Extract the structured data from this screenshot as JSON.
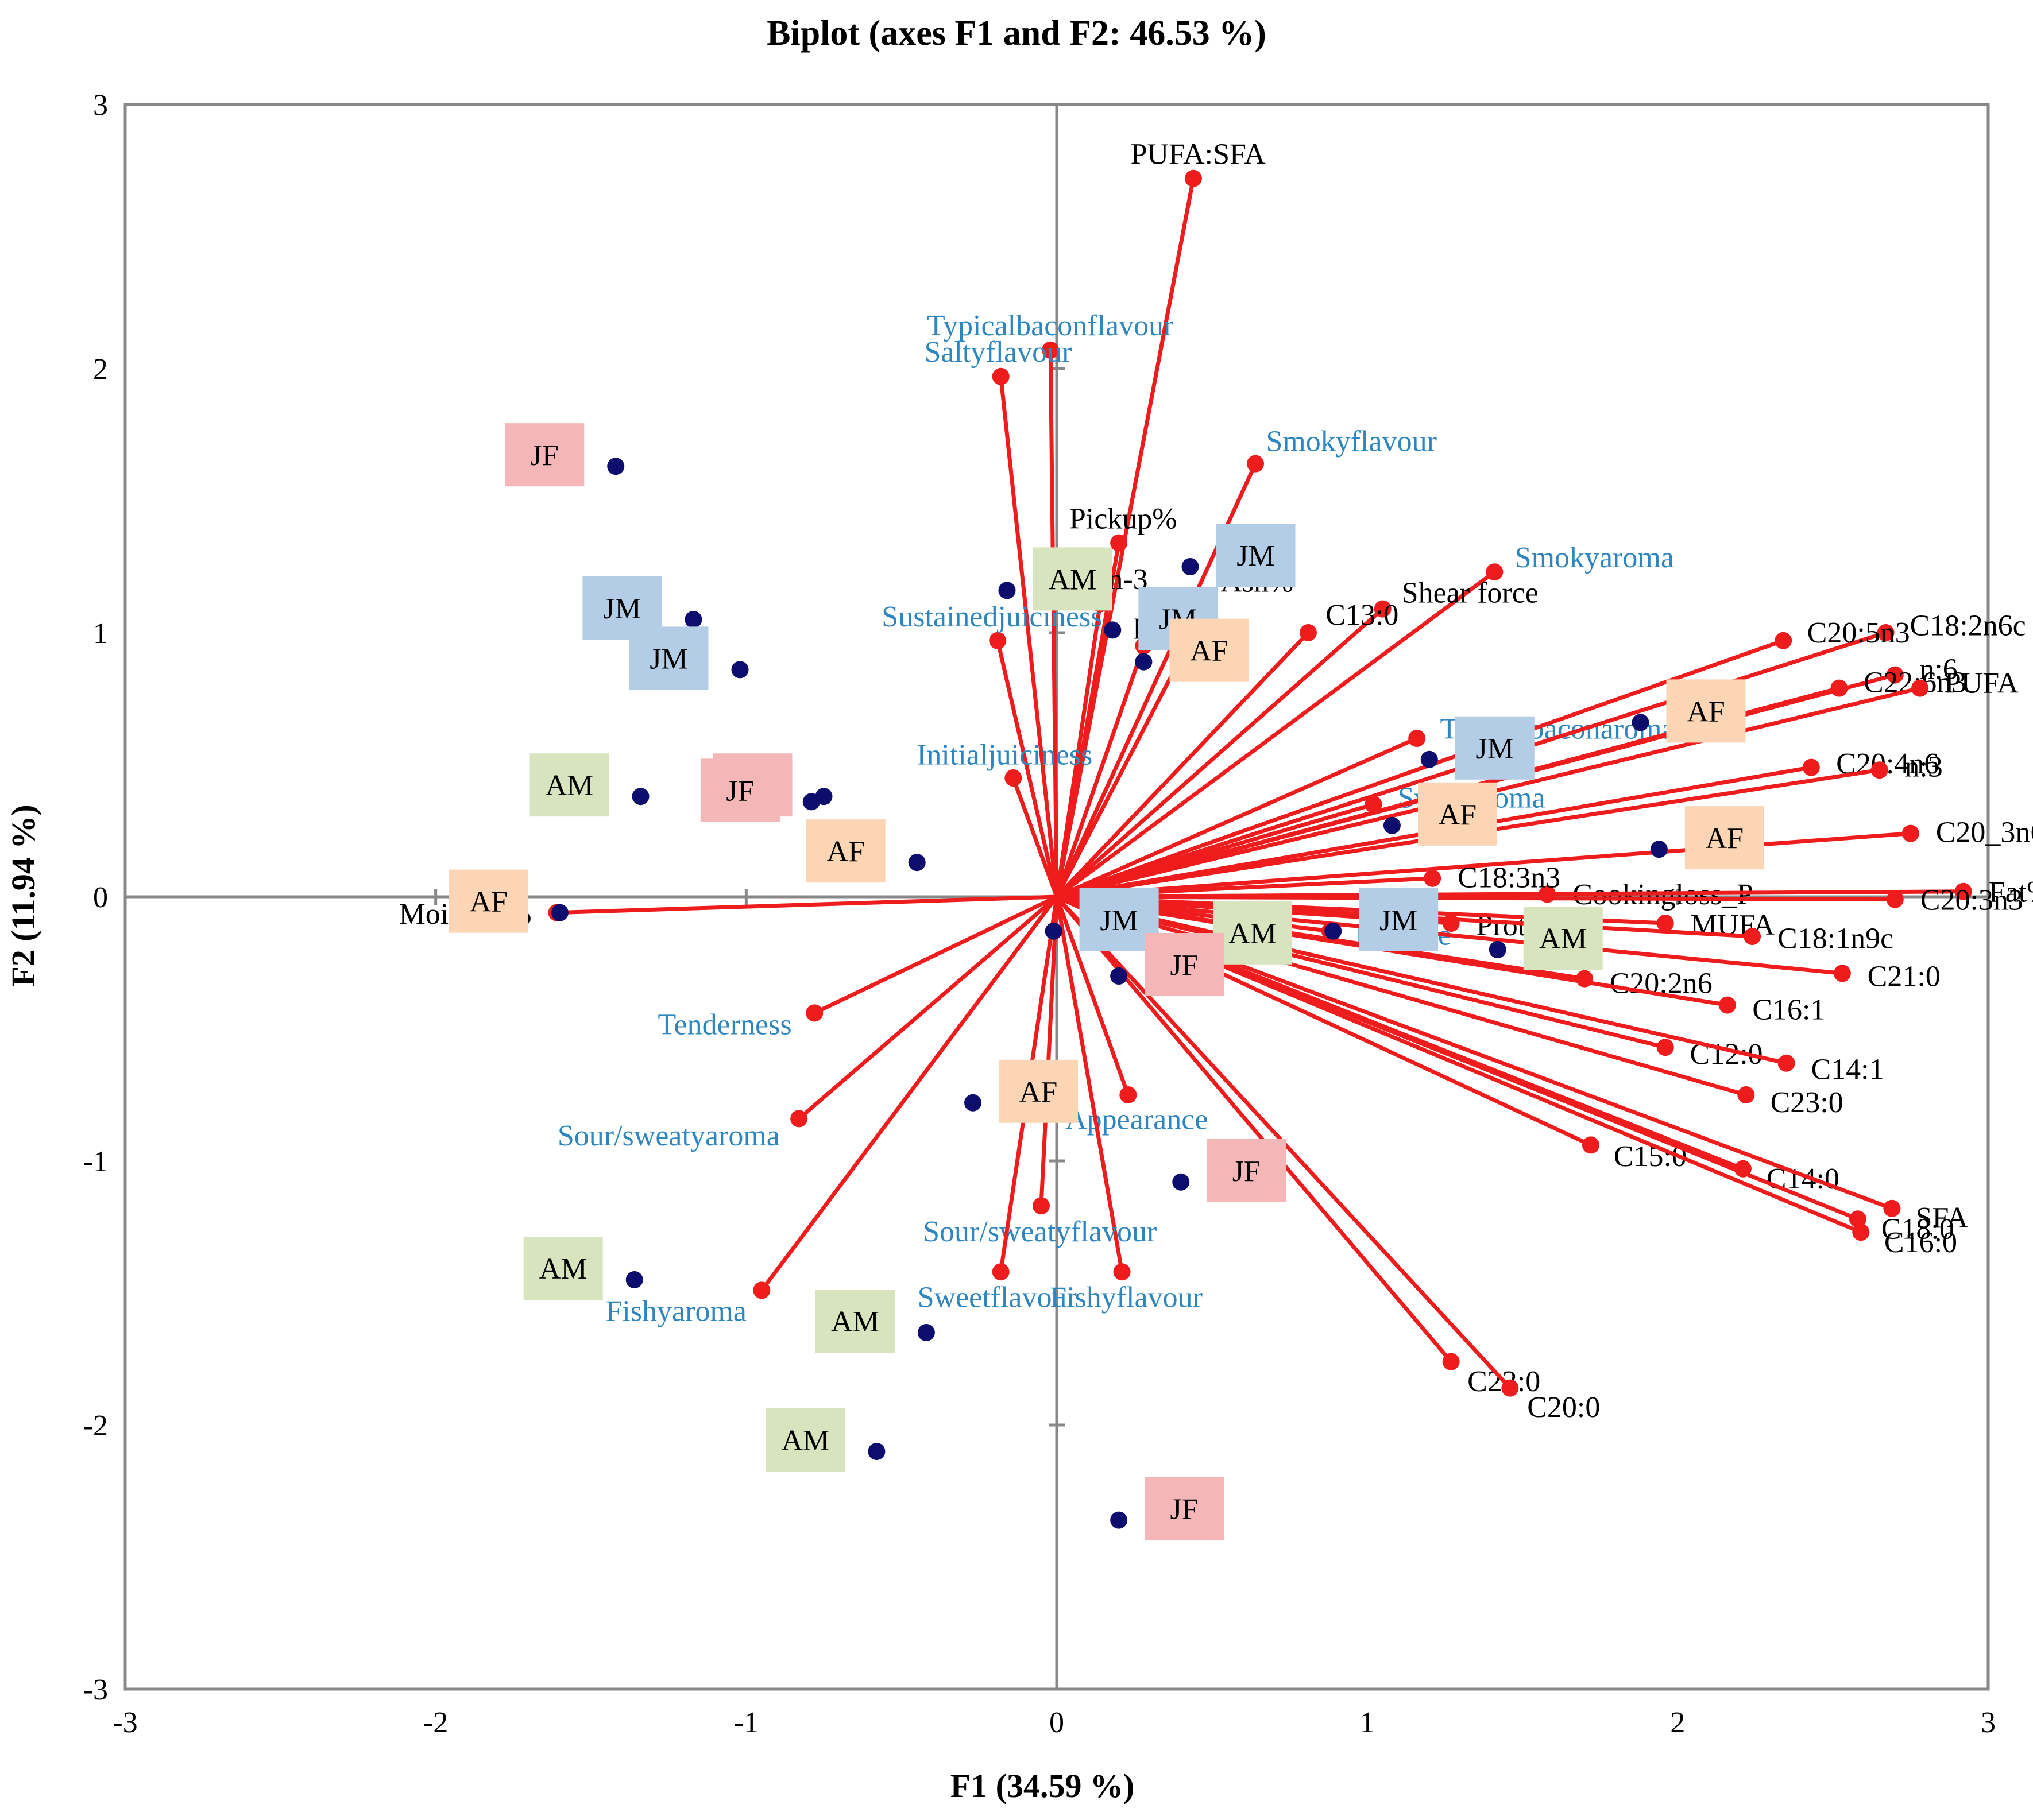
{
  "chart_data": {
    "type": "scatter",
    "subtype": "biplot",
    "title": "Biplot (axes F1 and F2: 46.53 %)",
    "xlabel": "F1 (34.59 %)",
    "ylabel": "F2 (11.94 %)",
    "xlim": [
      -3,
      3
    ],
    "ylim": [
      -3,
      3
    ],
    "xticks": [
      "-3",
      "-2",
      "-1",
      "0",
      "1",
      "2",
      "3"
    ],
    "yticks": [
      "3",
      "2",
      "1",
      "0",
      "-1",
      "-2",
      "-3"
    ],
    "colors": {
      "vector": "#ee1c1c",
      "observation": "#0d0d6e",
      "sensory_label": "#2e86c1",
      "chemical_label": "#000000",
      "AF": "#fcd5b5",
      "AM": "#d7e4bd",
      "JF": "#f4b6b6",
      "JM": "#b4cde6"
    },
    "variables": [
      {
        "name": "PUFA:SFA",
        "x": 0.44,
        "y": 2.72,
        "group": "chemical"
      },
      {
        "name": "Typicalbaconflavour",
        "x": -0.02,
        "y": 2.07,
        "group": "sensory"
      },
      {
        "name": "Saltyflavour",
        "x": -0.18,
        "y": 1.97,
        "group": "sensory"
      },
      {
        "name": "Smokyflavour",
        "x": 0.64,
        "y": 1.64,
        "group": "sensory"
      },
      {
        "name": "Pickup%",
        "x": 0.2,
        "y": 1.34,
        "group": "chemical"
      },
      {
        "name": "n-6:n-3",
        "x": 0.14,
        "y": 1.11,
        "group": "chemical"
      },
      {
        "name": "Ash%",
        "x": 0.49,
        "y": 1.11,
        "group": "chemical"
      },
      {
        "name": "pH",
        "x": 0.28,
        "y": 0.95,
        "group": "chemical"
      },
      {
        "name": "Smokyaroma",
        "x": 1.41,
        "y": 1.23,
        "group": "sensory"
      },
      {
        "name": "Shear force",
        "x": 1.05,
        "y": 1.09,
        "group": "chemical"
      },
      {
        "name": "C13:0",
        "x": 0.81,
        "y": 1.0,
        "group": "chemical"
      },
      {
        "name": "Sustainedjuiciness",
        "x": -0.19,
        "y": 0.97,
        "group": "sensory"
      },
      {
        "name": "Initialjuiciness",
        "x": -0.14,
        "y": 0.45,
        "group": "sensory"
      },
      {
        "name": "Typicalbaconaroma",
        "x": 1.16,
        "y": 0.6,
        "group": "sensory"
      },
      {
        "name": "Sweetaroma",
        "x": 1.02,
        "y": 0.35,
        "group": "sensory"
      },
      {
        "name": "C18:2n6c",
        "x": 2.67,
        "y": 1.0,
        "group": "chemical"
      },
      {
        "name": "C20:5n3",
        "x": 2.34,
        "y": 0.97,
        "group": "chemical"
      },
      {
        "name": "n:6",
        "x": 2.7,
        "y": 0.84,
        "group": "chemical"
      },
      {
        "name": "C22:6n3",
        "x": 2.52,
        "y": 0.79,
        "group": "chemical"
      },
      {
        "name": "PUFA",
        "x": 2.78,
        "y": 0.79,
        "group": "chemical"
      },
      {
        "name": "C20:4n6",
        "x": 2.43,
        "y": 0.49,
        "group": "chemical"
      },
      {
        "name": "n:3",
        "x": 2.65,
        "y": 0.48,
        "group": "chemical"
      },
      {
        "name": "C20_3n6",
        "x": 2.75,
        "y": 0.24,
        "group": "chemical"
      },
      {
        "name": "Cookingloss_P",
        "x": 1.58,
        "y": 0.01,
        "group": "chemical"
      },
      {
        "name": "C18:3n3",
        "x": 1.21,
        "y": 0.07,
        "group": "chemical"
      },
      {
        "name": "Fat%",
        "x": 2.92,
        "y": 0.02,
        "group": "chemical"
      },
      {
        "name": "C20:3n3",
        "x": 2.7,
        "y": -0.01,
        "group": "chemical"
      },
      {
        "name": "Residue",
        "x": 0.88,
        "y": -0.13,
        "group": "sensory"
      },
      {
        "name": "Protein%",
        "x": 1.27,
        "y": -0.1,
        "group": "chemical"
      },
      {
        "name": "MUFA",
        "x": 1.96,
        "y": -0.1,
        "group": "chemical"
      },
      {
        "name": "C18:1n9c",
        "x": 2.24,
        "y": -0.15,
        "group": "chemical"
      },
      {
        "name": "C21:0",
        "x": 2.53,
        "y": -0.29,
        "group": "chemical"
      },
      {
        "name": "C20:2n6",
        "x": 1.7,
        "y": -0.31,
        "group": "chemical"
      },
      {
        "name": "C16:1",
        "x": 2.16,
        "y": -0.41,
        "group": "chemical"
      },
      {
        "name": "C12:0",
        "x": 1.96,
        "y": -0.57,
        "group": "chemical"
      },
      {
        "name": "C14:1",
        "x": 2.35,
        "y": -0.63,
        "group": "chemical"
      },
      {
        "name": "C23:0",
        "x": 2.22,
        "y": -0.75,
        "group": "chemical"
      },
      {
        "name": "C15:0",
        "x": 1.72,
        "y": -0.94,
        "group": "chemical"
      },
      {
        "name": "C14:0",
        "x": 2.21,
        "y": -1.03,
        "group": "chemical"
      },
      {
        "name": "SFA",
        "x": 2.69,
        "y": -1.18,
        "group": "chemical"
      },
      {
        "name": "C18:0",
        "x": 2.58,
        "y": -1.22,
        "group": "chemical"
      },
      {
        "name": "C16:0",
        "x": 2.59,
        "y": -1.27,
        "group": "chemical"
      },
      {
        "name": "C22:0",
        "x": 1.27,
        "y": -1.76,
        "group": "chemical"
      },
      {
        "name": "C20:0",
        "x": 1.46,
        "y": -1.86,
        "group": "chemical"
      },
      {
        "name": "Appearance",
        "x": 0.23,
        "y": -0.75,
        "group": "sensory"
      },
      {
        "name": "Fishyflavour",
        "x": 0.21,
        "y": -1.42,
        "group": "sensory"
      },
      {
        "name": "Sour/sweatyflavour",
        "x": -0.05,
        "y": -1.17,
        "group": "sensory"
      },
      {
        "name": "Sweetflavour",
        "x": -0.18,
        "y": -1.42,
        "group": "sensory"
      },
      {
        "name": "Tenderness",
        "x": -0.78,
        "y": -0.44,
        "group": "sensory"
      },
      {
        "name": "Sour/sweatyaroma",
        "x": -0.83,
        "y": -0.84,
        "group": "sensory"
      },
      {
        "name": "Fishyaroma",
        "x": -0.95,
        "y": -1.49,
        "group": "sensory"
      },
      {
        "name": "Moisture%",
        "x": -1.61,
        "y": -0.06,
        "group": "chemical"
      }
    ],
    "observations": [
      {
        "label": "JF",
        "x": -1.42,
        "y": 1.63
      },
      {
        "label": "JM",
        "x": -1.17,
        "y": 1.05
      },
      {
        "label": "JM",
        "x": -1.02,
        "y": 0.86
      },
      {
        "label": "AM",
        "x": -0.16,
        "y": 1.16
      },
      {
        "label": "JM",
        "x": 0.43,
        "y": 1.25
      },
      {
        "label": "JM",
        "x": 0.18,
        "y": 1.01
      },
      {
        "label": "AF",
        "x": 0.28,
        "y": 0.89
      },
      {
        "label": "AM",
        "x": -1.34,
        "y": 0.38
      },
      {
        "label": "JF",
        "x": -0.75,
        "y": 0.38
      },
      {
        "label": "JF",
        "x": -0.79,
        "y": 0.36
      },
      {
        "label": "AF",
        "x": -0.45,
        "y": 0.13
      },
      {
        "label": "AF",
        "x": -1.6,
        "y": -0.06
      },
      {
        "label": "JM",
        "x": 1.2,
        "y": 0.52
      },
      {
        "label": "AF",
        "x": 1.88,
        "y": 0.66
      },
      {
        "label": "AF",
        "x": 1.08,
        "y": 0.27
      },
      {
        "label": "AF",
        "x": 1.94,
        "y": 0.18
      },
      {
        "label": "JM",
        "x": -0.01,
        "y": -0.13
      },
      {
        "label": "AM",
        "x": 0.42,
        "y": -0.18
      },
      {
        "label": "JM",
        "x": 0.89,
        "y": -0.13
      },
      {
        "label": "JF",
        "x": 0.2,
        "y": -0.3
      },
      {
        "label": "AM",
        "x": 1.42,
        "y": -0.2
      },
      {
        "label": "AF",
        "x": -0.27,
        "y": -0.78
      },
      {
        "label": "JF",
        "x": 0.4,
        "y": -1.08
      },
      {
        "label": "AM",
        "x": -1.36,
        "y": -1.45
      },
      {
        "label": "AM",
        "x": -0.42,
        "y": -1.65
      },
      {
        "label": "AM",
        "x": -0.58,
        "y": -2.1
      },
      {
        "label": "JF",
        "x": 0.2,
        "y": -2.36
      }
    ]
  }
}
